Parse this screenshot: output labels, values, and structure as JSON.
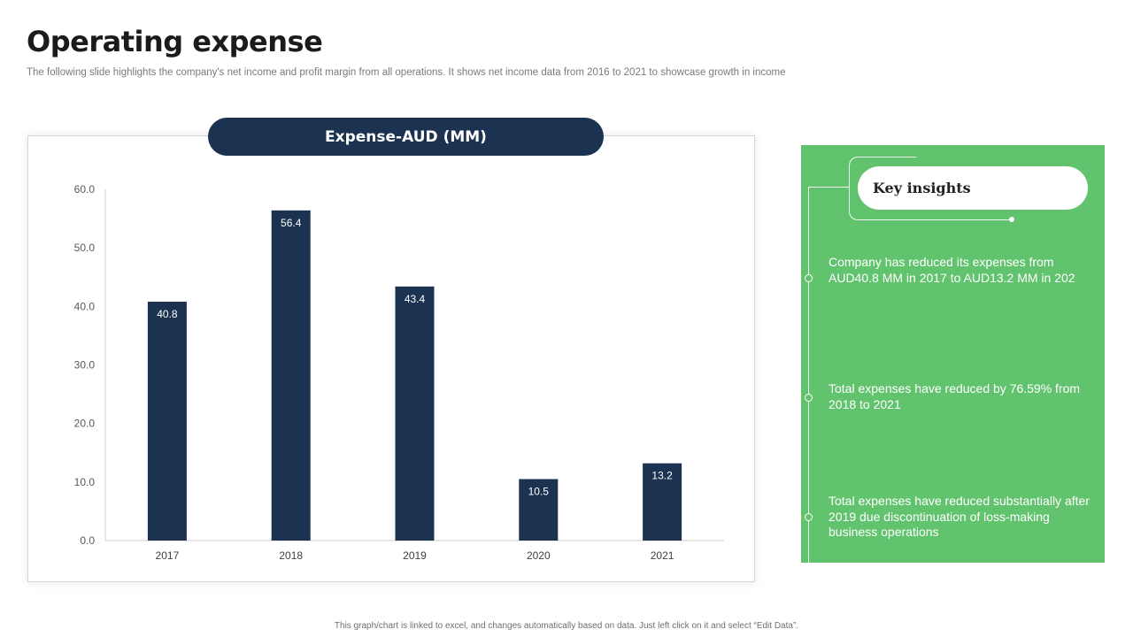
{
  "page": {
    "title": "Operating expense",
    "subtitle": "The following slide highlights the company's net income and profit margin from all operations. It shows net income data from 2016 to 2021 to showcase growth in income",
    "footer_note": "This graph/chart is linked to excel, and changes automatically based on data. Just left click on it and select “Edit Data”."
  },
  "chart_data": {
    "type": "bar",
    "title": "Expense-AUD (MM)",
    "categories": [
      "2017",
      "2018",
      "2019",
      "2020",
      "2021"
    ],
    "values": [
      40.8,
      56.4,
      43.4,
      10.5,
      13.2
    ],
    "value_labels": [
      "40.8",
      "56.4",
      "43.4",
      "10.5",
      "13.2"
    ],
    "ylim": [
      0,
      60
    ],
    "yticks": [
      "0.0",
      "10.0",
      "20.0",
      "30.0",
      "40.0",
      "50.0",
      "60.0"
    ],
    "xlabel": "",
    "ylabel": "",
    "grid": false,
    "legend": "none",
    "bar_color": "#1b3350"
  },
  "insights": {
    "heading": "Key insights",
    "items": [
      "Company has reduced its expenses from AUD40.8 MM in 2017 to AUD13.2 MM in 202",
      "Total expenses have reduced by 76.59% from 2018 to 2021",
      "Total expenses have reduced substantially after 2019 due discontinuation of loss-making business operations"
    ]
  },
  "colors": {
    "accent_navy": "#1b3350",
    "insights_green": "#62c36f",
    "text_dark": "#1b1b1b",
    "text_muted": "#7a7a7a"
  }
}
